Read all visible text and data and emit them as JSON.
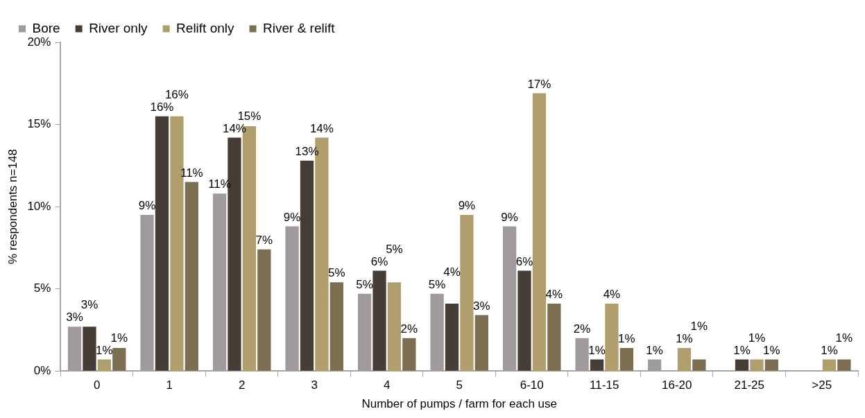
{
  "chart_data": {
    "type": "bar",
    "xlabel": "Number of pumps / farm for each use",
    "ylabel": "% respondents n=148",
    "categories": [
      "0",
      "1",
      "2",
      "3",
      "4",
      "5",
      "6-10",
      "11-15",
      "16-20",
      "21-25",
      ">25"
    ],
    "ylim": [
      0,
      20
    ],
    "yticks": [
      {
        "value": 0,
        "label": "0%"
      },
      {
        "value": 5,
        "label": "5%"
      },
      {
        "value": 10,
        "label": "10%"
      },
      {
        "value": 15,
        "label": "15%"
      },
      {
        "value": 20,
        "label": "20%"
      }
    ],
    "grid": false,
    "legend": "top",
    "data_labels": false,
    "series": [
      {
        "name": "Bore",
        "color": "#a09a9e",
        "values": [
          2.7,
          9.5,
          10.8,
          8.8,
          4.7,
          4.7,
          8.8,
          2.0,
          0.7,
          0,
          0
        ],
        "value_labels": [
          "3%",
          "9%",
          "11%",
          "9%",
          "5%",
          "5%",
          "9%",
          "2%",
          "1%",
          null,
          null
        ]
      },
      {
        "name": "River only",
        "color": "#463d37",
        "values": [
          2.7,
          15.5,
          14.2,
          12.8,
          6.1,
          4.1,
          6.1,
          0.7,
          0,
          0.7,
          0
        ],
        "value_labels": [
          "3%",
          "16%",
          "14%",
          "13%",
          "6%",
          "4%",
          "6%",
          "1%",
          null,
          "1%",
          null
        ]
      },
      {
        "name": "Relift only",
        "color": "#b09f6c",
        "values": [
          0.7,
          15.5,
          14.9,
          14.2,
          5.4,
          9.5,
          16.9,
          4.1,
          1.4,
          0.7,
          0.7
        ],
        "value_labels": [
          "1%",
          "16%",
          "15%",
          "14%",
          "5%",
          "9%",
          "17%",
          "4%",
          "1%",
          "1%",
          "1%"
        ]
      },
      {
        "name": "River & relift",
        "color": "#7b6e51",
        "values": [
          1.4,
          11.5,
          7.4,
          5.4,
          2.0,
          3.4,
          4.1,
          1.4,
          0.7,
          0.7,
          0.7
        ],
        "value_labels": [
          "1%",
          "11%",
          "7%",
          "5%",
          "2%",
          "3%",
          "4%",
          "1%",
          "1%",
          "1%",
          "1%"
        ]
      }
    ]
  }
}
